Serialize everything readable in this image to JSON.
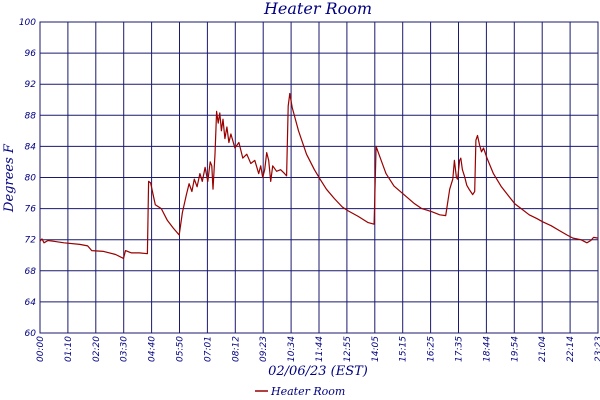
{
  "chart_data": {
    "type": "line",
    "title": "Heater Room",
    "xlabel": "02/06/23 (EST)",
    "ylabel": "Degrees F",
    "ylim": [
      60,
      100
    ],
    "yticks": [
      60,
      64,
      68,
      72,
      76,
      80,
      84,
      88,
      92,
      96,
      100
    ],
    "xticks": [
      "00:00",
      "01:10",
      "02:20",
      "03:30",
      "04:40",
      "05:50",
      "07:01",
      "08:12",
      "09:23",
      "10:34",
      "11:44",
      "12:55",
      "14:05",
      "15:15",
      "16:25",
      "17:35",
      "18:44",
      "19:54",
      "21:04",
      "22:14",
      "23:23"
    ],
    "grid": true,
    "legend_position": "bottom-center",
    "colors": {
      "series": "#990000",
      "grid": "#1a1a6e",
      "text": "#000080"
    },
    "series": [
      {
        "name": "Heater Room",
        "color": "#990000",
        "points": [
          [
            "00:00",
            71.8
          ],
          [
            "00:05",
            72.1
          ],
          [
            "00:10",
            71.6
          ],
          [
            "00:20",
            71.9
          ],
          [
            "00:35",
            71.8
          ],
          [
            "01:00",
            71.6
          ],
          [
            "01:40",
            71.4
          ],
          [
            "02:00",
            71.2
          ],
          [
            "02:10",
            70.6
          ],
          [
            "02:40",
            70.5
          ],
          [
            "03:10",
            70.1
          ],
          [
            "03:30",
            69.6
          ],
          [
            "03:35",
            70.6
          ],
          [
            "03:50",
            70.3
          ],
          [
            "04:10",
            70.3
          ],
          [
            "04:30",
            70.2
          ],
          [
            "04:33",
            79.5
          ],
          [
            "04:38",
            79.3
          ],
          [
            "04:50",
            76.5
          ],
          [
            "05:05",
            76.0
          ],
          [
            "05:20",
            74.5
          ],
          [
            "05:35",
            73.5
          ],
          [
            "05:50",
            72.6
          ],
          [
            "05:58",
            75.5
          ],
          [
            "06:08",
            77.8
          ],
          [
            "06:15",
            79.2
          ],
          [
            "06:22",
            78.2
          ],
          [
            "06:28",
            79.8
          ],
          [
            "06:35",
            78.8
          ],
          [
            "06:42",
            80.5
          ],
          [
            "06:48",
            79.5
          ],
          [
            "06:55",
            81.3
          ],
          [
            "07:02",
            79.5
          ],
          [
            "07:08",
            82.0
          ],
          [
            "07:12",
            81.5
          ],
          [
            "07:15",
            78.5
          ],
          [
            "07:20",
            83.0
          ],
          [
            "07:24",
            88.5
          ],
          [
            "07:28",
            87.0
          ],
          [
            "07:32",
            88.3
          ],
          [
            "07:36",
            86.0
          ],
          [
            "07:40",
            87.5
          ],
          [
            "07:45",
            85.0
          ],
          [
            "07:50",
            86.5
          ],
          [
            "07:55",
            84.5
          ],
          [
            "08:00",
            85.6
          ],
          [
            "08:10",
            83.8
          ],
          [
            "08:20",
            84.5
          ],
          [
            "08:30",
            82.5
          ],
          [
            "08:40",
            83.0
          ],
          [
            "08:50",
            81.8
          ],
          [
            "09:00",
            82.2
          ],
          [
            "09:10",
            80.5
          ],
          [
            "09:15",
            81.5
          ],
          [
            "09:20",
            80.0
          ],
          [
            "09:25",
            81.0
          ],
          [
            "09:30",
            83.2
          ],
          [
            "09:35",
            82.2
          ],
          [
            "09:40",
            79.5
          ],
          [
            "09:45",
            81.5
          ],
          [
            "09:55",
            80.8
          ],
          [
            "10:05",
            81.0
          ],
          [
            "10:15",
            80.5
          ],
          [
            "10:20",
            80.2
          ],
          [
            "10:24",
            89.2
          ],
          [
            "10:28",
            90.8
          ],
          [
            "10:34",
            89.0
          ],
          [
            "10:50",
            86.0
          ],
          [
            "11:10",
            83.0
          ],
          [
            "11:30",
            81.0
          ],
          [
            "11:44",
            79.8
          ],
          [
            "12:00",
            78.5
          ],
          [
            "12:20",
            77.3
          ],
          [
            "12:40",
            76.2
          ],
          [
            "12:55",
            75.7
          ],
          [
            "13:20",
            75.0
          ],
          [
            "13:45",
            74.2
          ],
          [
            "14:00",
            74.0
          ],
          [
            "14:05",
            84.0
          ],
          [
            "14:12",
            83.0
          ],
          [
            "14:30",
            80.5
          ],
          [
            "14:50",
            78.9
          ],
          [
            "15:15",
            77.8
          ],
          [
            "15:40",
            76.7
          ],
          [
            "16:00",
            76.0
          ],
          [
            "16:25",
            75.6
          ],
          [
            "16:45",
            75.2
          ],
          [
            "17:00",
            75.1
          ],
          [
            "17:10",
            78.5
          ],
          [
            "17:18",
            79.8
          ],
          [
            "17:22",
            82.2
          ],
          [
            "17:27",
            80.0
          ],
          [
            "17:30",
            79.8
          ],
          [
            "17:35",
            82.2
          ],
          [
            "17:38",
            82.5
          ],
          [
            "17:42",
            81.0
          ],
          [
            "17:47",
            80.2
          ],
          [
            "17:53",
            79.0
          ],
          [
            "18:00",
            78.4
          ],
          [
            "18:08",
            77.8
          ],
          [
            "18:13",
            78.2
          ],
          [
            "18:16",
            84.8
          ],
          [
            "18:20",
            85.4
          ],
          [
            "18:25",
            84.2
          ],
          [
            "18:30",
            83.3
          ],
          [
            "18:35",
            83.8
          ],
          [
            "18:44",
            82.5
          ],
          [
            "19:00",
            80.5
          ],
          [
            "19:20",
            78.8
          ],
          [
            "19:40",
            77.5
          ],
          [
            "19:54",
            76.6
          ],
          [
            "20:10",
            76.0
          ],
          [
            "20:30",
            75.2
          ],
          [
            "20:50",
            74.7
          ],
          [
            "21:04",
            74.3
          ],
          [
            "21:25",
            73.8
          ],
          [
            "21:45",
            73.2
          ],
          [
            "22:05",
            72.6
          ],
          [
            "22:20",
            72.2
          ],
          [
            "22:40",
            72.0
          ],
          [
            "22:55",
            71.6
          ],
          [
            "23:05",
            71.9
          ],
          [
            "23:12",
            72.3
          ],
          [
            "23:23",
            72.2
          ]
        ]
      }
    ]
  }
}
